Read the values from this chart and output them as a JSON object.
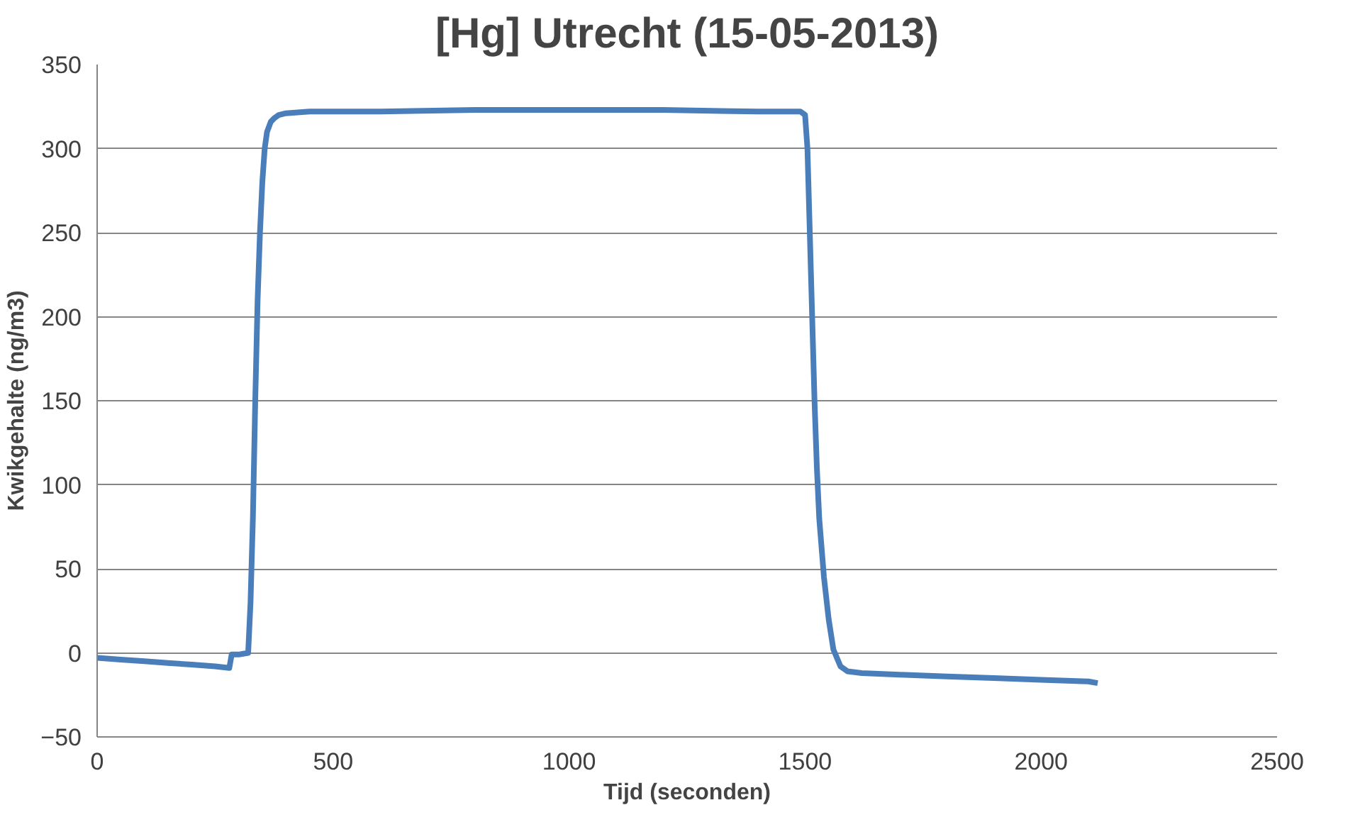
{
  "chart_data": {
    "type": "line",
    "title": "[Hg] Utrecht (15-05-2013)",
    "xlabel": "Tijd (seconden)",
    "ylabel": "Kwikgehalte (ng/m3)",
    "x": [
      0,
      50,
      100,
      150,
      200,
      250,
      280,
      285,
      300,
      320,
      325,
      330,
      335,
      340,
      345,
      350,
      355,
      360,
      368,
      375,
      385,
      400,
      450,
      600,
      800,
      1000,
      1200,
      1400,
      1490,
      1500,
      1505,
      1510,
      1515,
      1520,
      1525,
      1530,
      1540,
      1550,
      1560,
      1575,
      1590,
      1620,
      1700,
      1800,
      1900,
      2000,
      2100,
      2120
    ],
    "series": [
      {
        "color": "#4a7ebb",
        "values": [
          -3,
          -4,
          -5,
          -6,
          -7,
          -8,
          -9,
          -1,
          -1,
          0,
          30,
          80,
          150,
          210,
          250,
          280,
          300,
          310,
          316,
          318,
          320,
          321,
          322,
          322,
          323,
          323,
          323,
          322,
          322,
          320,
          300,
          250,
          200,
          150,
          110,
          80,
          45,
          20,
          2,
          -8,
          -11,
          -12,
          -13,
          -14,
          -15,
          -16,
          -17,
          -18
        ]
      }
    ],
    "xlim": [
      0,
      2500
    ],
    "xticks": [
      0,
      500,
      1000,
      1500,
      2000,
      2500
    ],
    "ylim": [
      -50,
      350
    ],
    "yticks": [
      -50,
      0,
      50,
      100,
      150,
      200,
      250,
      300,
      350
    ],
    "grid": "y",
    "line_style": "solid"
  }
}
